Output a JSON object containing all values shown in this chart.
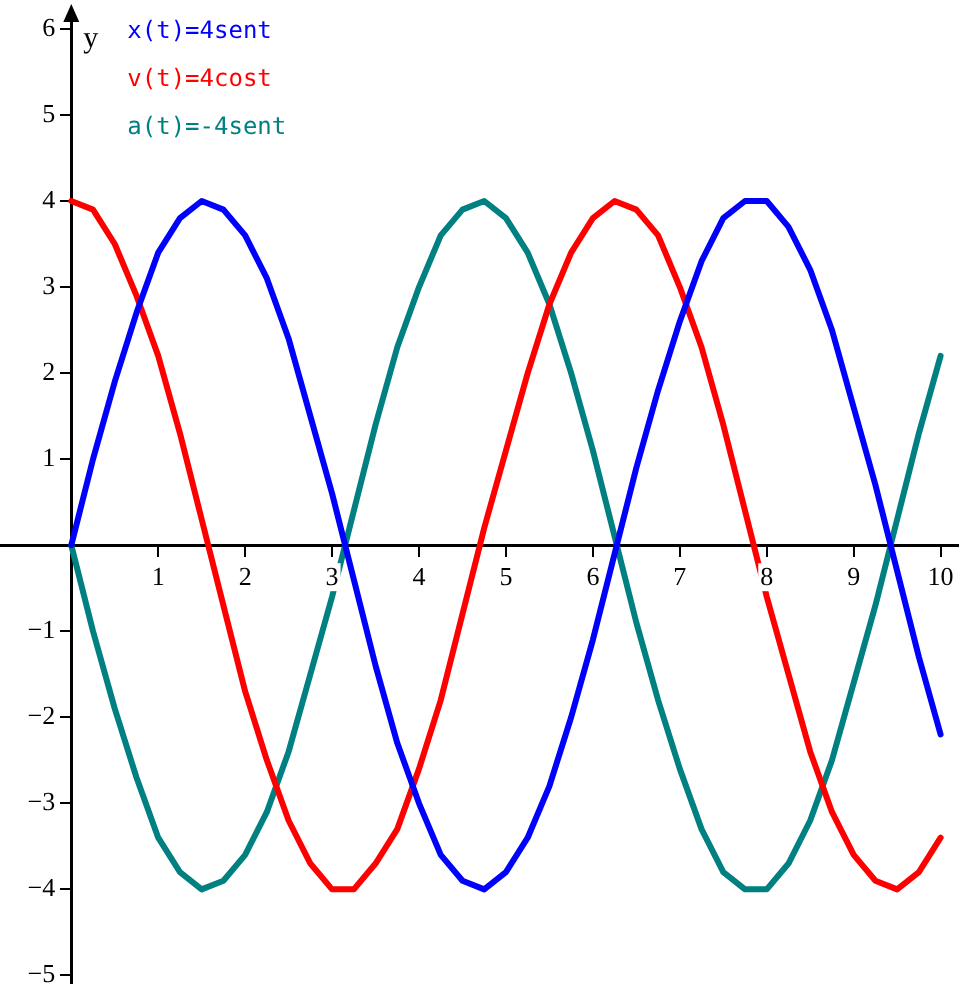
{
  "chart_data": {
    "type": "line",
    "ylabel": "y",
    "x": [
      0,
      0.25,
      0.5,
      0.75,
      1,
      1.25,
      1.5,
      1.75,
      2,
      2.25,
      2.5,
      2.75,
      3,
      3.25,
      3.5,
      3.75,
      4,
      4.25,
      4.5,
      4.75,
      5,
      5.25,
      5.5,
      5.75,
      6,
      6.25,
      6.5,
      6.75,
      7,
      7.25,
      7.5,
      7.75,
      8,
      8.25,
      8.5,
      8.75,
      9,
      9.25,
      9.5,
      9.75,
      10
    ],
    "series": [
      {
        "name": "x(t)=4sent",
        "color": "#0000ff",
        "values": [
          0,
          1.0,
          1.9,
          2.7,
          3.4,
          3.8,
          4.0,
          3.9,
          3.6,
          3.1,
          2.4,
          1.5,
          0.6,
          -0.4,
          -1.4,
          -2.3,
          -3.0,
          -3.6,
          -3.9,
          -4.0,
          -3.8,
          -3.4,
          -2.8,
          -2.0,
          -1.1,
          -0.1,
          0.9,
          1.8,
          2.6,
          3.3,
          3.8,
          4.0,
          4.0,
          3.7,
          3.2,
          2.5,
          1.6,
          0.7,
          -0.3,
          -1.3,
          -2.2
        ]
      },
      {
        "name": "v(t)=4cost",
        "color": "#ff0000",
        "values": [
          4.0,
          3.9,
          3.5,
          2.9,
          2.2,
          1.3,
          0.3,
          -0.7,
          -1.7,
          -2.5,
          -3.2,
          -3.7,
          -4.0,
          -4.0,
          -3.7,
          -3.3,
          -2.6,
          -1.8,
          -0.8,
          0.2,
          1.1,
          2.0,
          2.8,
          3.4,
          3.8,
          4.0,
          3.9,
          3.6,
          3.0,
          2.3,
          1.4,
          0.4,
          -0.6,
          -1.5,
          -2.4,
          -3.1,
          -3.6,
          -3.9,
          -4.0,
          -3.8,
          -3.4
        ]
      },
      {
        "name": "a(t)=-4sent",
        "color": "#008080",
        "values": [
          0,
          -1.0,
          -1.9,
          -2.7,
          -3.4,
          -3.8,
          -4.0,
          -3.9,
          -3.6,
          -3.1,
          -2.4,
          -1.5,
          -0.6,
          0.4,
          1.4,
          2.3,
          3.0,
          3.6,
          3.9,
          4.0,
          3.8,
          3.4,
          2.8,
          2.0,
          1.1,
          0.1,
          -0.9,
          -1.8,
          -2.6,
          -3.3,
          -3.8,
          -4.0,
          -4.0,
          -3.7,
          -3.2,
          -2.5,
          -1.6,
          -0.7,
          0.3,
          1.3,
          2.2
        ]
      }
    ],
    "xlim": [
      -0.82,
      10.2
    ],
    "ylim": [
      -5.1,
      6.15
    ],
    "xticks": [
      1,
      2,
      3,
      4,
      5,
      6,
      7,
      8,
      9,
      10
    ],
    "yticks": [
      {
        "value": -5,
        "label": "−5"
      },
      {
        "value": -4,
        "label": "−4"
      },
      {
        "value": -3,
        "label": "−3"
      },
      {
        "value": -2,
        "label": "−2"
      },
      {
        "value": -1,
        "label": "−1"
      },
      1,
      2,
      3,
      4,
      5,
      6
    ],
    "grid": false,
    "legend": "top left",
    "line_style": "solid"
  }
}
